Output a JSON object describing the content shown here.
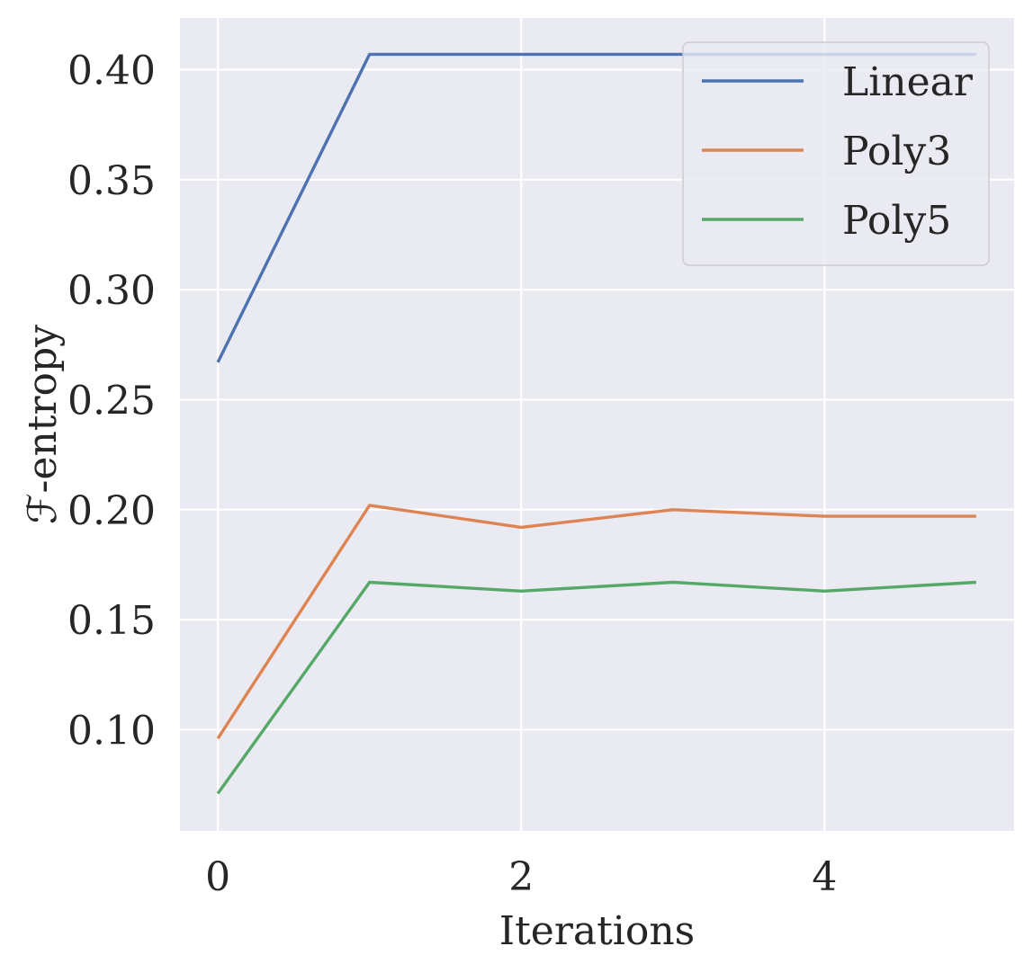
{
  "chart_data": {
    "type": "line",
    "xlabel": "Iterations",
    "ylabel": "ℱ-entropy",
    "xlim": [
      -0.25,
      5.25
    ],
    "ylim": [
      0.054,
      0.4235
    ],
    "xticks": [
      0,
      2,
      4
    ],
    "xtick_labels": [
      "0",
      "2",
      "4"
    ],
    "yticks": [
      0.1,
      0.15,
      0.2,
      0.25,
      0.3,
      0.35,
      0.4
    ],
    "ytick_labels": [
      "0.10",
      "0.15",
      "0.20",
      "0.25",
      "0.30",
      "0.35",
      "0.40"
    ],
    "grid": true,
    "legend_position": "top-right",
    "x": [
      0,
      1,
      2,
      3,
      4,
      5
    ],
    "series": [
      {
        "name": "Linear",
        "color": "#4c72b0",
        "values": [
          0.267,
          0.407,
          0.407,
          0.407,
          0.407,
          0.407
        ]
      },
      {
        "name": "Poly3",
        "color": "#dd8452",
        "values": [
          0.096,
          0.202,
          0.192,
          0.2,
          0.197,
          0.197
        ]
      },
      {
        "name": "Poly5",
        "color": "#55a868",
        "values": [
          0.071,
          0.167,
          0.163,
          0.167,
          0.163,
          0.167
        ]
      }
    ]
  },
  "colors": {
    "plot_background": "#eaeaf2",
    "grid": "#ffffff",
    "text": "#262626"
  }
}
